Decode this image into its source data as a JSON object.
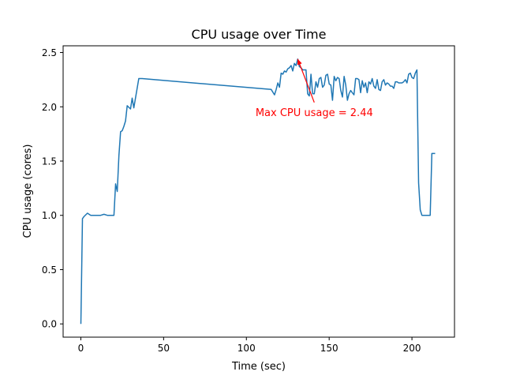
{
  "chart_data": {
    "type": "line",
    "title": "CPU usage over Time",
    "xlabel": "Time (sec)",
    "ylabel": "CPU usage (cores)",
    "xlim": [
      -10.7,
      225.7
    ],
    "ylim": [
      -0.122,
      2.562
    ],
    "xticks": [
      0,
      50,
      100,
      150,
      200
    ],
    "xtick_labels": [
      "0",
      "50",
      "100",
      "150",
      "200"
    ],
    "yticks": [
      0.0,
      0.5,
      1.0,
      1.5,
      2.0,
      2.5
    ],
    "ytick_labels": [
      "0.0",
      "0.5",
      "1.0",
      "1.5",
      "2.0",
      "2.5"
    ],
    "grid": false,
    "legend": "none",
    "series_color": "#1f77b4",
    "series": [
      {
        "x": [
          0,
          1,
          2,
          4,
          6,
          8,
          10,
          12,
          14,
          16,
          19,
          20,
          21,
          22,
          23,
          24,
          25,
          26,
          27,
          28,
          30,
          31,
          32,
          34,
          35,
          37,
          115,
          117,
          118,
          119,
          120,
          121,
          122,
          123,
          124,
          125,
          126,
          127,
          128,
          129,
          130,
          131,
          132,
          133,
          134,
          136,
          137,
          138,
          139,
          140,
          141,
          142,
          143,
          144,
          145,
          146,
          147,
          148,
          149,
          150,
          151,
          152,
          153,
          154,
          155,
          156,
          157,
          158,
          159,
          160,
          161,
          162,
          163,
          164,
          165,
          166,
          167,
          168,
          169,
          170,
          171,
          172,
          173,
          174,
          175,
          176,
          177,
          178,
          179,
          180,
          181,
          182,
          183,
          184,
          185,
          186,
          187,
          188,
          189,
          190,
          191,
          192,
          193,
          194,
          195,
          196,
          197,
          198,
          199,
          200,
          201,
          202,
          203,
          204,
          205,
          206,
          207,
          208,
          209,
          210,
          211,
          212,
          213,
          214
        ],
        "y": [
          0.0,
          0.97,
          0.99,
          1.02,
          1.0,
          1.0,
          1.0,
          1.0,
          1.01,
          1.0,
          1.0,
          1.0,
          1.29,
          1.22,
          1.55,
          1.77,
          1.78,
          1.82,
          1.87,
          2.01,
          1.98,
          2.08,
          1.99,
          2.17,
          2.26,
          2.26,
          2.16,
          2.11,
          2.16,
          2.22,
          2.18,
          2.31,
          2.3,
          2.33,
          2.32,
          2.35,
          2.36,
          2.38,
          2.33,
          2.4,
          2.38,
          2.44,
          2.37,
          2.36,
          2.34,
          2.34,
          2.12,
          2.1,
          2.3,
          2.12,
          2.12,
          2.23,
          2.18,
          2.26,
          2.27,
          2.18,
          2.2,
          2.29,
          2.3,
          2.21,
          2.2,
          2.06,
          2.28,
          2.24,
          2.27,
          2.26,
          2.15,
          2.09,
          2.28,
          2.2,
          2.06,
          2.12,
          2.15,
          2.13,
          2.11,
          2.26,
          2.26,
          2.25,
          2.13,
          2.24,
          2.18,
          2.22,
          2.13,
          2.23,
          2.21,
          2.26,
          2.19,
          2.17,
          2.25,
          2.16,
          2.15,
          2.23,
          2.25,
          2.2,
          2.22,
          2.21,
          2.19,
          2.19,
          2.17,
          2.23,
          2.23,
          2.22,
          2.22,
          2.22,
          2.23,
          2.25,
          2.22,
          2.3,
          2.31,
          2.27,
          2.26,
          2.31,
          2.34,
          1.3,
          1.05,
          1.0,
          1.0,
          1.0,
          1.0,
          1.0,
          1.0,
          1.57,
          1.57,
          1.57
        ]
      }
    ],
    "annotation": {
      "text": "Max CPU usage = 2.44",
      "color": "#ff0000",
      "point": [
        131,
        2.44
      ],
      "text_at": [
        141,
        2.04
      ]
    }
  }
}
